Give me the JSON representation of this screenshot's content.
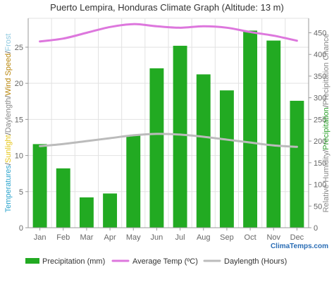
{
  "chart_data": {
    "type": "bar",
    "title": "Puerto Lempira, Honduras Climate Graph (Altitude: 13 m)",
    "categories": [
      "Jan",
      "Feb",
      "Mar",
      "Apr",
      "May",
      "Jun",
      "Jul",
      "Aug",
      "Sep",
      "Oct",
      "Nov",
      "Dec"
    ],
    "left_axis": {
      "label_parts": [
        {
          "text": "Temperatures",
          "color": "#29a3cc"
        },
        {
          "text": "/",
          "color": "#555555"
        },
        {
          "text": "Sunlight",
          "color": "#e6c619"
        },
        {
          "text": "/",
          "color": "#555555"
        },
        {
          "text": "Daylength",
          "color": "#888888"
        },
        {
          "text": "/",
          "color": "#555555"
        },
        {
          "text": "Wind Speed",
          "color": "#b8860b"
        },
        {
          "text": "/",
          "color": "#555555"
        },
        {
          "text": "Frost",
          "color": "#8ec9e0"
        }
      ],
      "ylim": [
        0,
        29
      ],
      "ticks": [
        0,
        5,
        10,
        15,
        20,
        25
      ]
    },
    "right_axis": {
      "label_parts": [
        {
          "text": "Relative Humidity",
          "color": "#888888"
        },
        {
          "text": "/",
          "color": "#555555"
        },
        {
          "text": "Precipitation",
          "color": "#2aa02a"
        },
        {
          "text": "/",
          "color": "#555555"
        },
        {
          "text": "Precipitation Chance",
          "color": "#888888"
        }
      ],
      "ylim": [
        0,
        483.33
      ],
      "ticks": [
        0,
        50,
        100,
        150,
        200,
        250,
        300,
        350,
        400,
        450
      ]
    },
    "series": [
      {
        "name": "Precipitation (mm)",
        "type": "bar",
        "axis": "right",
        "color": "#22aa22",
        "values": [
          193,
          137,
          70,
          79,
          213,
          368,
          420,
          354,
          317,
          455,
          432,
          293
        ]
      },
      {
        "name": "Average Temp (ºC)",
        "type": "line",
        "axis": "left",
        "color": "#dd77dd",
        "values": [
          25.8,
          26.2,
          27.0,
          27.8,
          28.2,
          27.9,
          27.7,
          27.9,
          27.7,
          27.1,
          26.6,
          25.9
        ]
      },
      {
        "name": "Daylength (Hours)",
        "type": "line",
        "axis": "left",
        "color": "#bbbbbb",
        "values": [
          11.3,
          11.6,
          12.0,
          12.4,
          12.8,
          13.0,
          12.9,
          12.6,
          12.2,
          11.8,
          11.4,
          11.2
        ]
      }
    ],
    "grid": true,
    "legend_position": "bottom"
  },
  "brand": "ClimaTemps.com"
}
